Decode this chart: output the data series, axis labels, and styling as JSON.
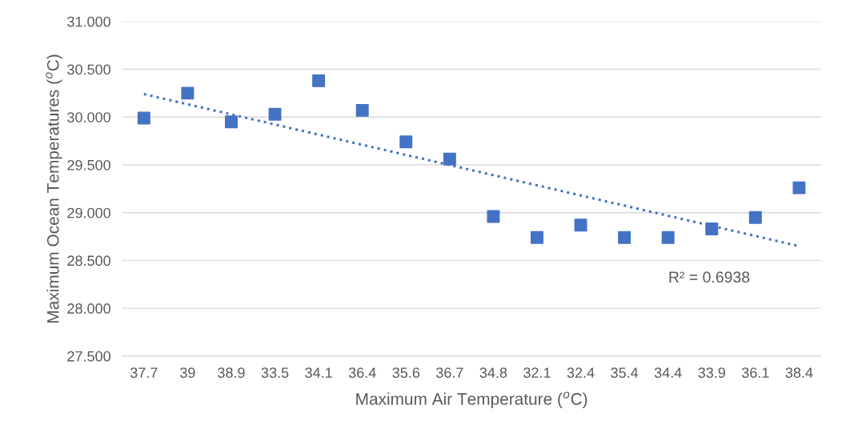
{
  "chart_data": {
    "type": "scatter",
    "xlabel": "Maximum Air Temperature ($^{o}$C)",
    "ylabel": "Maximum Ocean Temperatures ($^{o}$C)",
    "categories": [
      "37.7",
      "39",
      "38.9",
      "33.5",
      "34.1",
      "36.4",
      "35.6",
      "36.7",
      "34.8",
      "32.1",
      "32.4",
      "35.4",
      "34.4",
      "33.9",
      "36.1",
      "38.4"
    ],
    "series": [
      {
        "color": "#4472c4",
        "marker": "square",
        "values": [
          29.99,
          30.25,
          29.95,
          30.03,
          30.38,
          30.07,
          29.74,
          29.56,
          28.96,
          28.74,
          28.87,
          28.74,
          28.74,
          28.83,
          28.95,
          29.26
        ]
      },
      {
        "type": "line",
        "color": "#4472c4",
        "line_style": "dotted",
        "marker": "none",
        "x": [
          "37.7",
          "38.4"
        ],
        "values": [
          30.24,
          28.65
        ]
      }
    ],
    "ylim": [
      27.5,
      31
    ],
    "yticks": [
      {
        "value": 27.5,
        "label": "27.500"
      },
      {
        "value": 28,
        "label": "28.000"
      },
      {
        "value": 28.5,
        "label": "28.500"
      },
      {
        "value": 29,
        "label": "29.000"
      },
      {
        "value": 29.5,
        "label": "29.500"
      },
      {
        "value": 30,
        "label": "30.000"
      },
      {
        "value": 30.5,
        "label": "30.500"
      },
      {
        "value": 31,
        "label": "31.000"
      }
    ],
    "grid": "y",
    "annotations": [
      "R² = 0.6938"
    ]
  }
}
